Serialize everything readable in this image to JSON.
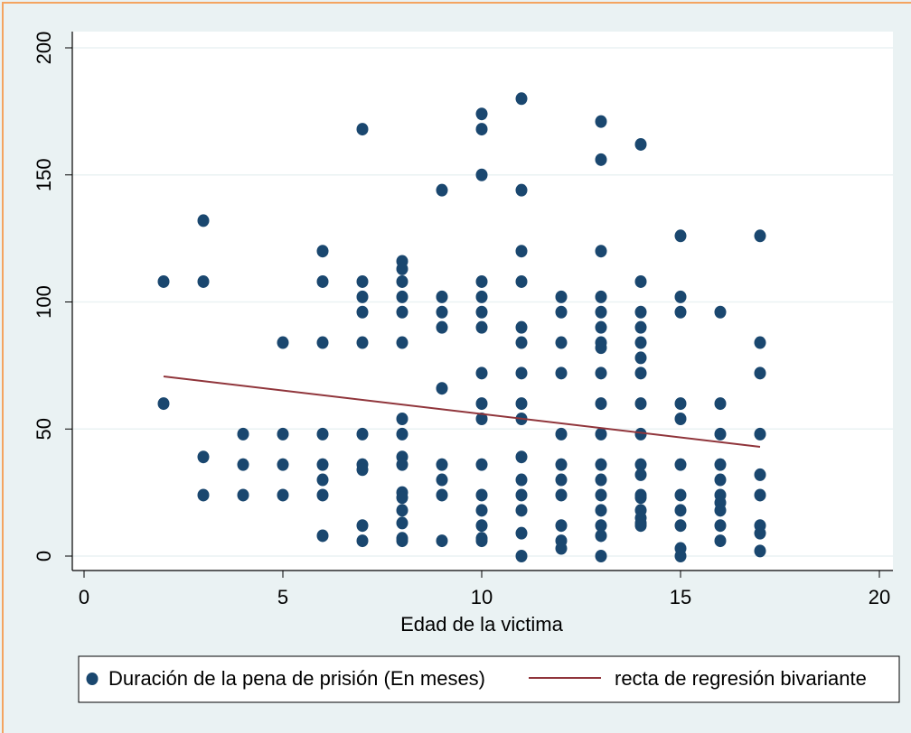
{
  "chart_data": {
    "type": "scatter",
    "xlabel": "Edad de la victima",
    "xlim": [
      0,
      20
    ],
    "xticks": [
      0,
      5,
      10,
      15,
      20
    ],
    "ylim": [
      0,
      200
    ],
    "yticks": [
      0,
      50,
      100,
      150,
      200
    ],
    "grid": true,
    "series": [
      {
        "name": "Duración de la pena de prisión (En meses)",
        "type": "scatter",
        "color": "#1a476f",
        "x": [
          2,
          2,
          3,
          3,
          3,
          3,
          4,
          4,
          4,
          5,
          5,
          5,
          5,
          6,
          6,
          6,
          6,
          6,
          6,
          6,
          6,
          7,
          7,
          7,
          7,
          7,
          7,
          7,
          7,
          7,
          7,
          8,
          8,
          8,
          8,
          8,
          8,
          8,
          8,
          8,
          8,
          8,
          8,
          8,
          8,
          8,
          8,
          9,
          9,
          9,
          9,
          9,
          9,
          9,
          9,
          9,
          10,
          10,
          10,
          10,
          10,
          10,
          10,
          10,
          10,
          10,
          10,
          10,
          10,
          10,
          10,
          10,
          11,
          11,
          11,
          11,
          11,
          11,
          11,
          11,
          11,
          11,
          11,
          11,
          11,
          11,
          11,
          12,
          12,
          12,
          12,
          12,
          12,
          12,
          12,
          12,
          12,
          12,
          13,
          13,
          13,
          13,
          13,
          13,
          13,
          13,
          13,
          13,
          13,
          13,
          13,
          13,
          13,
          13,
          13,
          13,
          14,
          14,
          14,
          14,
          14,
          14,
          14,
          14,
          14,
          14,
          14,
          14,
          14,
          14,
          14,
          14,
          14,
          15,
          15,
          15,
          15,
          15,
          15,
          15,
          15,
          15,
          15,
          15,
          16,
          16,
          16,
          16,
          16,
          16,
          16,
          16,
          16,
          16,
          17,
          17,
          17,
          17,
          17,
          17,
          17,
          17,
          17
        ],
        "values": [
          108,
          60,
          132,
          108,
          39,
          24,
          48,
          36,
          24,
          84,
          48,
          36,
          24,
          120,
          108,
          84,
          48,
          36,
          30,
          24,
          8,
          168,
          108,
          102,
          96,
          84,
          48,
          36,
          34,
          12,
          6,
          116,
          113,
          108,
          102,
          96,
          84,
          54,
          48,
          39,
          36,
          25,
          23,
          18,
          13,
          7,
          6,
          144,
          102,
          96,
          90,
          66,
          36,
          30,
          24,
          6,
          174,
          168,
          150,
          108,
          102,
          96,
          90,
          72,
          60,
          54,
          36,
          24,
          18,
          12,
          7,
          6,
          180,
          144,
          120,
          108,
          90,
          84,
          72,
          60,
          54,
          39,
          30,
          24,
          18,
          9,
          0,
          102,
          96,
          84,
          72,
          48,
          36,
          30,
          24,
          12,
          6,
          3,
          171,
          156,
          120,
          102,
          96,
          90,
          84,
          82,
          72,
          60,
          48,
          36,
          30,
          24,
          18,
          12,
          8,
          0,
          162,
          108,
          96,
          90,
          84,
          78,
          72,
          60,
          48,
          36,
          32,
          24,
          23,
          18,
          15,
          13,
          12,
          126,
          102,
          96,
          60,
          54,
          36,
          24,
          18,
          12,
          3,
          0,
          96,
          60,
          48,
          36,
          30,
          24,
          21,
          18,
          12,
          6,
          126,
          84,
          72,
          48,
          32,
          24,
          12,
          9,
          2
        ]
      },
      {
        "name": "recta de regresión bivariante",
        "type": "line",
        "color": "#90353b",
        "x": [
          2,
          17
        ],
        "values": [
          70.7,
          43
        ]
      }
    ]
  }
}
